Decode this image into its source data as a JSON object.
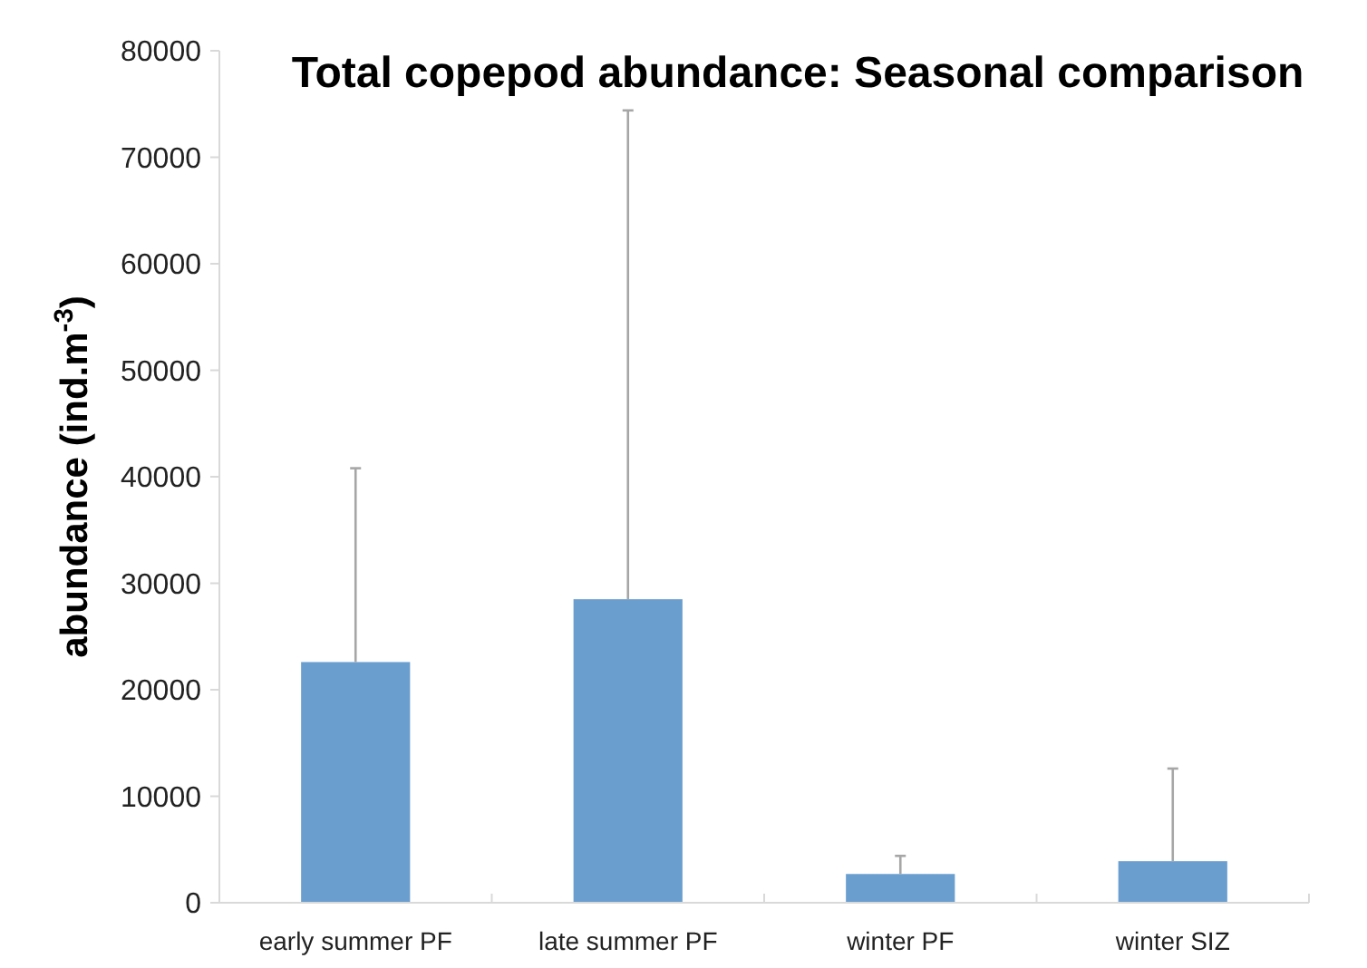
{
  "chart_data": {
    "type": "bar",
    "title": "Total copepod abundance: Seasonal comparison",
    "ylabel": "abundance (ind.m$^{-3}$)",
    "categories": [
      "early summer PF",
      "late summer PF",
      "winter PF",
      "winter SIZ"
    ],
    "values": [
      22600,
      28500,
      2700,
      3900
    ],
    "errors": [
      [
        22600,
        40800
      ],
      [
        28500,
        74400
      ],
      [
        2700,
        4400
      ],
      [
        3900,
        12600
      ]
    ],
    "color": "#6a9ecf",
    "ylim": [
      0,
      80000
    ],
    "yticks": [
      0,
      10000,
      20000,
      30000,
      40000,
      50000,
      60000,
      70000,
      80000
    ],
    "grid": false
  }
}
